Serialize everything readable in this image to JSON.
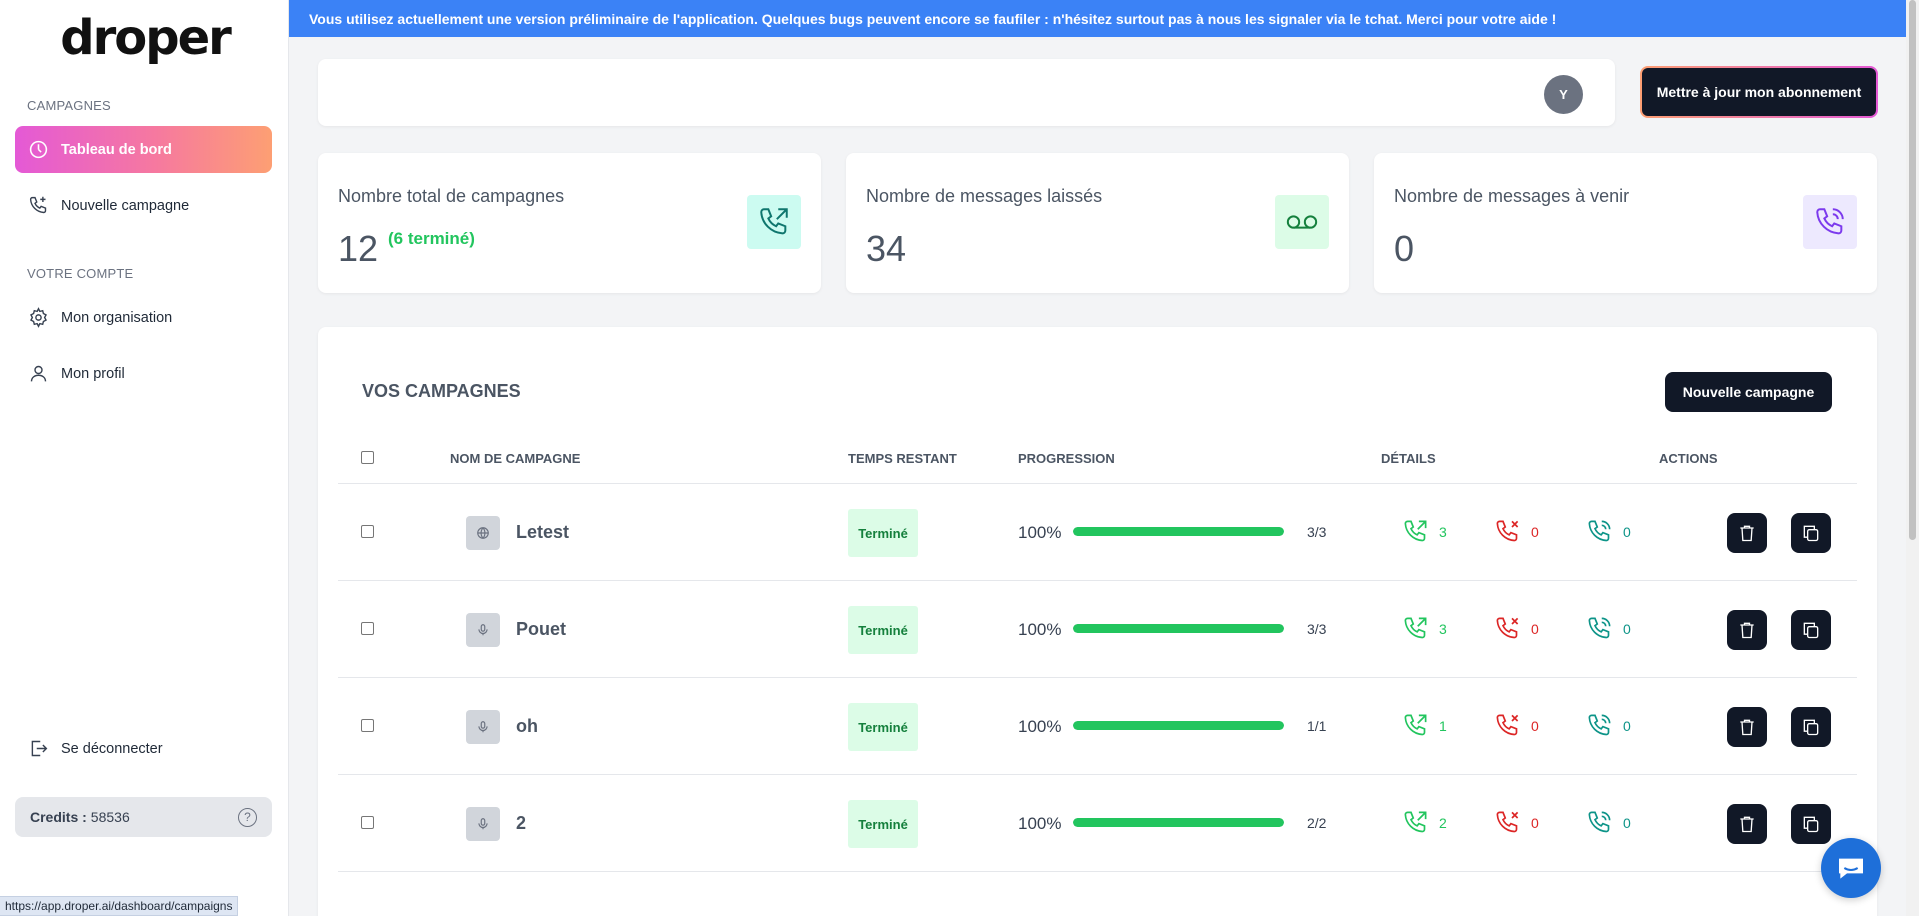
{
  "brand": {
    "logo_text": "droper"
  },
  "banner": {
    "text": "Vous utilisez actuellement une version préliminaire de l'application. Quelques bugs peuvent encore se faufiler : n'hésitez surtout pas à nous les signaler via le tchat. Merci pour votre aide !"
  },
  "sidebar": {
    "section_campaigns": "CAMPAGNES",
    "section_account": "VOTRE COMPTE",
    "items": [
      {
        "label": "Tableau de bord",
        "icon": "dashboard-icon",
        "active": true
      },
      {
        "label": "Nouvelle campagne",
        "icon": "phone-plus-icon"
      },
      {
        "label": "Mon organisation",
        "icon": "gear-icon"
      },
      {
        "label": "Mon profil",
        "icon": "user-icon"
      }
    ],
    "logout_label": "Se déconnecter",
    "credits_label": "Credits :",
    "credits_value": "58536"
  },
  "header": {
    "avatar_initial": "Y",
    "upgrade_label": "Mettre à jour mon abonnement"
  },
  "stats": [
    {
      "label": "Nombre total de campagnes",
      "value": "12",
      "sub": "(6 terminé)",
      "icon": "phone-outgoing-icon",
      "icon_bg": "#ccfbf1",
      "icon_color": "#0f766e"
    },
    {
      "label": "Nombre de messages laissés",
      "value": "34",
      "sub": "",
      "icon": "voicemail-icon",
      "icon_bg": "#dcfce7",
      "icon_color": "#15803d"
    },
    {
      "label": "Nombre de messages à venir",
      "value": "0",
      "sub": "",
      "icon": "phone-signal-icon",
      "icon_bg": "#ede9fe",
      "icon_color": "#7c3aed"
    }
  ],
  "campaigns": {
    "title": "VOS CAMPAGNES",
    "new_button": "Nouvelle campagne",
    "columns": [
      "NOM DE CAMPAGNE",
      "TEMPS RESTANT",
      "PROGRESSION",
      "DÉTAILS",
      "ACTIONS"
    ],
    "rows": [
      {
        "name": "Letest",
        "status": "Terminé",
        "progress": "100%",
        "progress_value": 100,
        "ratio": "3/3",
        "sent": "3",
        "failed": "0",
        "pending": "0",
        "type_icon": "globe-icon"
      },
      {
        "name": "Pouet",
        "status": "Terminé",
        "progress": "100%",
        "progress_value": 100,
        "ratio": "3/3",
        "sent": "3",
        "failed": "0",
        "pending": "0",
        "type_icon": "microphone-icon"
      },
      {
        "name": "oh",
        "status": "Terminé",
        "progress": "100%",
        "progress_value": 100,
        "ratio": "1/1",
        "sent": "1",
        "failed": "0",
        "pending": "0",
        "type_icon": "microphone-icon"
      },
      {
        "name": "2",
        "status": "Terminé",
        "progress": "100%",
        "progress_value": 100,
        "ratio": "2/2",
        "sent": "2",
        "failed": "0",
        "pending": "0",
        "type_icon": "microphone-icon"
      }
    ]
  },
  "statusbar": {
    "url": "https://app.droper.ai/dashboard/campaigns"
  },
  "colors": {
    "green": "#22c55e",
    "red": "#dc2626",
    "teal": "#0d9488",
    "dark": "#111827"
  }
}
